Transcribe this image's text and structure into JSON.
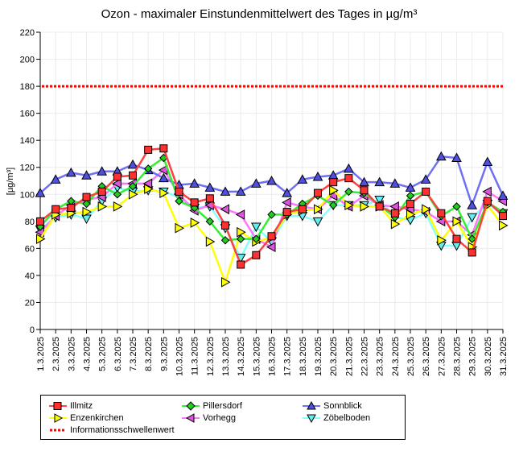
{
  "chart_data": {
    "type": "line",
    "title": "Ozon -  maximaler Einstundenmittelwert des Tages in µg/m³",
    "xlabel": "",
    "ylabel": "[µg/m³]",
    "ylim": [
      0,
      220
    ],
    "yticks": [
      0,
      20,
      40,
      60,
      80,
      100,
      120,
      140,
      160,
      180,
      200,
      220
    ],
    "grid": true,
    "legend_position": "bottom",
    "x": [
      "1.3.2025",
      "2.3.2025",
      "3.3.2025",
      "4.3.2025",
      "5.3.2025",
      "6.3.2025",
      "7.3.2025",
      "8.3.2025",
      "9.3.2025",
      "10.3.2025",
      "11.3.2025",
      "12.3.2025",
      "13.3.2025",
      "14.3.2025",
      "15.3.2025",
      "16.3.2025",
      "17.3.2025",
      "18.3.2025",
      "19.3.2025",
      "20.3.2025",
      "21.3.2025",
      "22.3.2025",
      "23.3.2025",
      "24.3.2025",
      "25.3.2025",
      "26.3.2025",
      "27.3.2025",
      "28.3.2025",
      "29.3.2025",
      "30.3.2025",
      "31.3.2025"
    ],
    "series": [
      {
        "name": "Illmitz",
        "color": "#ff4040",
        "marker": "square",
        "marker_fill": "#ff3030",
        "values": [
          80,
          89,
          90,
          98,
          102,
          113,
          114,
          133,
          134,
          102,
          94,
          97,
          77,
          48,
          55,
          69,
          87,
          89,
          101,
          109,
          112,
          103,
          91,
          86,
          93,
          102,
          86,
          67,
          57,
          95,
          84
        ]
      },
      {
        "name": "Pillersdorf",
        "color": "#33ee33",
        "marker": "diamond",
        "marker_fill": "#22cc22",
        "values": [
          76,
          89,
          95,
          93,
          106,
          100,
          106,
          119,
          127,
          95,
          90,
          80,
          66,
          67,
          67,
          85,
          85,
          93,
          99,
          92,
          102,
          101,
          92,
          83,
          99,
          102,
          84,
          91,
          67,
          94,
          87
        ]
      },
      {
        "name": "Sonnblick",
        "color": "#7070f0",
        "marker": "triangle-up",
        "marker_fill": "#5050e0",
        "values": [
          101,
          111,
          116,
          114,
          117,
          117,
          122,
          118,
          112,
          107,
          108,
          105,
          102,
          102,
          108,
          110,
          101,
          111,
          113,
          114,
          119,
          109,
          109,
          108,
          105,
          111,
          128,
          127,
          92,
          124,
          99
        ]
      },
      {
        "name": "Enzenkirchen",
        "color": "#ffff00",
        "marker": "triangle-right",
        "marker_fill": "#ffff00",
        "values": [
          67,
          85,
          86,
          87,
          91,
          91,
          100,
          104,
          101,
          75,
          79,
          65,
          35,
          72,
          65,
          68,
          85,
          88,
          89,
          103,
          92,
          91,
          91,
          78,
          85,
          89,
          66,
          80,
          61,
          92,
          77
        ]
      },
      {
        "name": "Vorhegg",
        "color": "#ff77ff",
        "marker": "triangle-left",
        "marker_fill": "#dd55dd",
        "values": [
          72,
          84,
          92,
          96,
          98,
          108,
          108,
          108,
          118,
          100,
          88,
          92,
          89,
          85,
          67,
          61,
          94,
          91,
          89,
          99,
          91,
          99,
          92,
          91,
          89,
          87,
          80,
          80,
          70,
          102,
          95
        ]
      },
      {
        "name": "Zöbelboden",
        "color": "#88ffff",
        "marker": "triangle-down",
        "marker_fill": "#66eeee",
        "values": [
          74,
          83,
          85,
          82,
          95,
          105,
          102,
          103,
          102,
          98,
          90,
          91,
          75,
          53,
          76,
          65,
          84,
          84,
          80,
          92,
          92,
          92,
          96,
          83,
          81,
          86,
          62,
          62,
          83,
          93,
          86
        ]
      }
    ],
    "threshold": {
      "name": "Informationsschwellenwert",
      "value": 180,
      "color": "#ff0000"
    }
  }
}
